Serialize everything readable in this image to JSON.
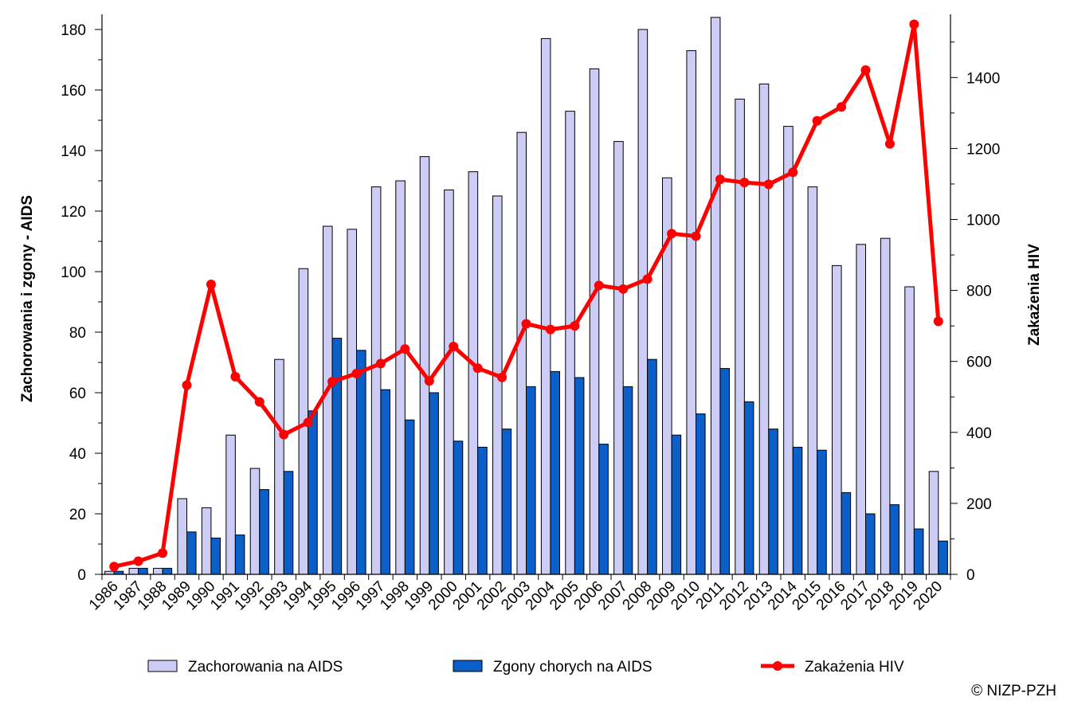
{
  "chart_data": {
    "type": "bar+line",
    "categories": [
      "1986",
      "1987",
      "1988",
      "1989",
      "1990",
      "1991",
      "1992",
      "1993",
      "1994",
      "1995",
      "1996",
      "1997",
      "1998",
      "1999",
      "2000",
      "2001",
      "2002",
      "2003",
      "2004",
      "2005",
      "2006",
      "2007",
      "2008",
      "2009",
      "2010",
      "2011",
      "2012",
      "2013",
      "2014",
      "2015",
      "2016",
      "2017",
      "2018",
      "2019",
      "2020"
    ],
    "series": [
      {
        "name": "Zachorowania na AIDS",
        "kind": "bar",
        "axis": "left",
        "color": "#ccccf5",
        "values": [
          1,
          2,
          2,
          25,
          22,
          46,
          35,
          71,
          101,
          115,
          114,
          128,
          130,
          138,
          127,
          133,
          125,
          146,
          177,
          153,
          167,
          143,
          180,
          131,
          173,
          184,
          157,
          162,
          148,
          128,
          102,
          109,
          111,
          95,
          34
        ]
      },
      {
        "name": "Zgony chorych na AIDS",
        "kind": "bar",
        "axis": "left",
        "color": "#0a5fc8",
        "values": [
          1,
          2,
          2,
          14,
          12,
          13,
          28,
          34,
          54,
          78,
          74,
          61,
          51,
          60,
          44,
          42,
          48,
          62,
          67,
          65,
          43,
          62,
          71,
          46,
          53,
          68,
          57,
          48,
          42,
          41,
          27,
          20,
          23,
          15,
          11
        ]
      },
      {
        "name": "Zakażenia HIV",
        "kind": "line",
        "axis": "right",
        "color": "#ff0000",
        "values": [
          22,
          37,
          60,
          533,
          817,
          557,
          486,
          394,
          428,
          543,
          566,
          594,
          635,
          545,
          642,
          581,
          555,
          706,
          690,
          700,
          814,
          804,
          832,
          960,
          953,
          1113,
          1104,
          1099,
          1133,
          1278,
          1317,
          1421,
          1213,
          1550,
          713
        ]
      }
    ],
    "left_axis": {
      "title": "Zachorowania i zgony - AIDS",
      "ylim": [
        0,
        185
      ],
      "ticks": [
        "0",
        "20",
        "40",
        "60",
        "80",
        "100",
        "120",
        "140",
        "160",
        "180"
      ]
    },
    "right_axis": {
      "title": "Zakażenia HIV",
      "ylim": [
        0,
        1578
      ],
      "ticks": [
        "0",
        "200",
        "400",
        "600",
        "800",
        "1000",
        "1200",
        "1400"
      ]
    },
    "legend": {
      "placement": "bottom",
      "entries": [
        "Zachorowania na AIDS",
        "Zgony chorych na AIDS",
        "Zakażenia HIV"
      ]
    }
  },
  "credit": "© NIZP-PZH"
}
